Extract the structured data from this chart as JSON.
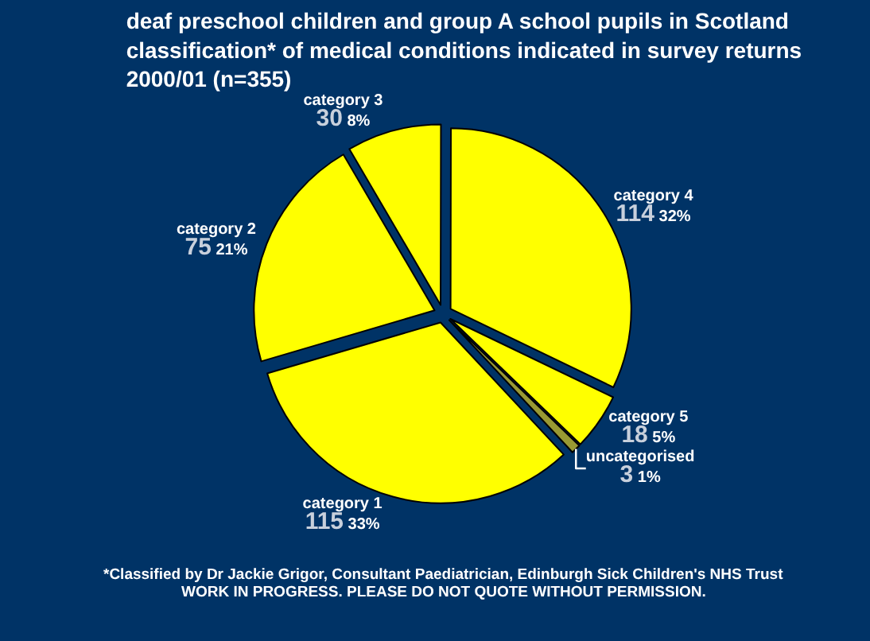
{
  "chart_data": {
    "type": "pie",
    "title": "deaf preschool children and group A school pupils in Scotland classification* of medical conditions indicated in survey returns 2000/01 (n=355)",
    "categories": [
      "category 1",
      "category 2",
      "category 3",
      "category 4",
      "category 5",
      "uncategorised"
    ],
    "values": [
      115,
      75,
      30,
      114,
      18,
      3
    ],
    "colors": [
      "#ffff00",
      "#ffff00",
      "#ffff00",
      "#ffff00",
      "#ffff00",
      "#999933"
    ],
    "value_labels": [
      "115 33%",
      "75 21%",
      "30 8%",
      "114 32%",
      "18 5%",
      "3 1%"
    ],
    "annotations": [
      "*Classified by Dr Jackie Grigor, Consultant Paediatrician, Edinburgh Sick Children's NHS Trust",
      "WORK IN PROGRESS. PLEASE DO NOT QUOTE WITHOUT PERMISSION."
    ]
  }
}
